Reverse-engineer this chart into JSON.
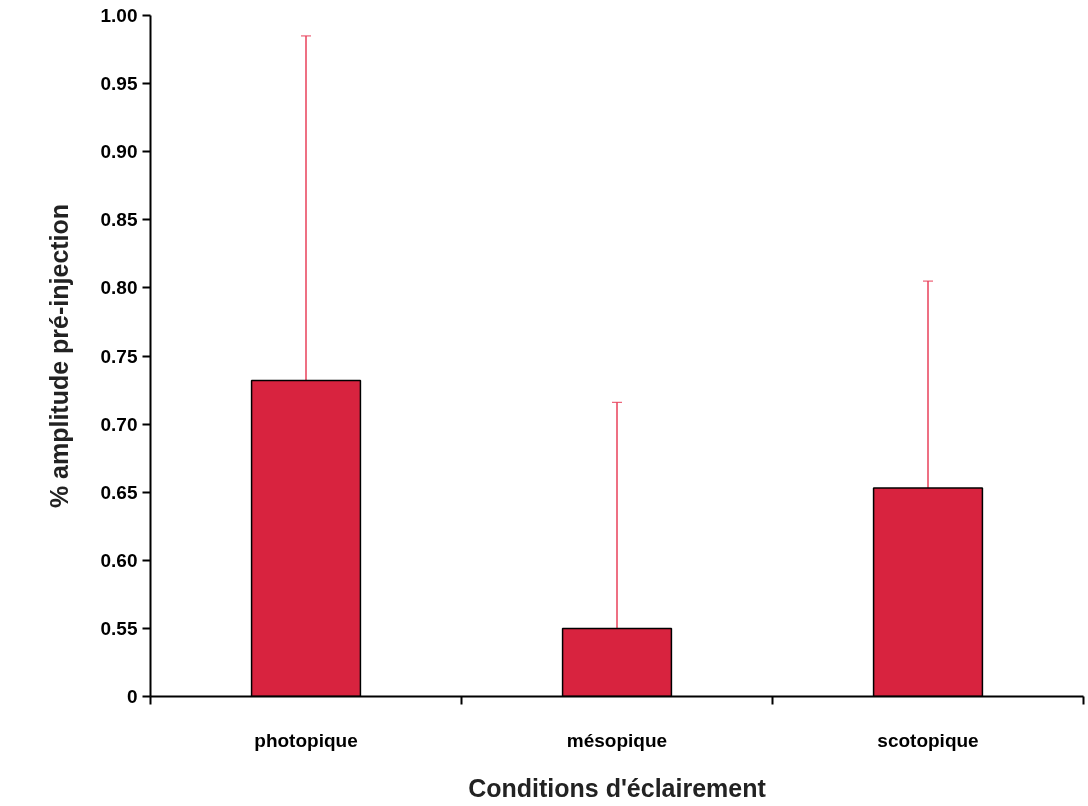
{
  "chart_data": {
    "type": "bar",
    "xlabel": "Conditions d'éclairement",
    "ylabel": "% amplitude pré-injection",
    "categories": [
      "photopique",
      "mésopique",
      "scotopique"
    ],
    "series": [
      {
        "color": "#d8233f",
        "values": [
          0.732,
          0.55,
          0.653
        ],
        "errors": [
          [
            0.732,
            0.985
          ],
          [
            0.55,
            0.716
          ],
          [
            0.653,
            0.805
          ]
        ]
      }
    ],
    "ylim": [
      0.5,
      1.0
    ],
    "yticks": [
      {
        "value": 0.5,
        "label": "0"
      },
      0.55,
      {
        "value": 0.6,
        "label": "0.60"
      },
      0.65,
      {
        "value": 0.7,
        "label": "0.70"
      },
      0.75,
      {
        "value": 0.8,
        "label": "0.80"
      },
      0.85,
      {
        "value": 0.9,
        "label": "0.90"
      },
      0.95,
      {
        "value": 1.0,
        "label": "1.00"
      }
    ],
    "grid": false
  }
}
